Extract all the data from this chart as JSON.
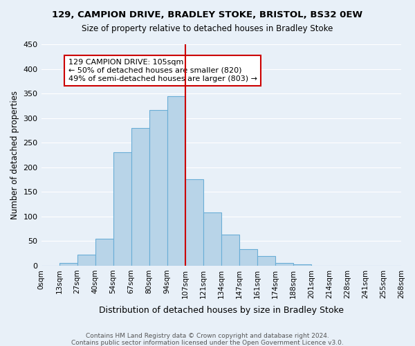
{
  "title1": "129, CAMPION DRIVE, BRADLEY STOKE, BRISTOL, BS32 0EW",
  "title2": "Size of property relative to detached houses in Bradley Stoke",
  "xlabel": "Distribution of detached houses by size in Bradley Stoke",
  "ylabel": "Number of detached properties",
  "bin_labels": [
    "0sqm",
    "13sqm",
    "27sqm",
    "40sqm",
    "54sqm",
    "67sqm",
    "80sqm",
    "94sqm",
    "107sqm",
    "121sqm",
    "134sqm",
    "147sqm",
    "161sqm",
    "174sqm",
    "188sqm",
    "201sqm",
    "214sqm",
    "228sqm",
    "241sqm",
    "255sqm",
    "268sqm"
  ],
  "bar_values": [
    0,
    6,
    22,
    55,
    230,
    280,
    316,
    344,
    176,
    108,
    63,
    33,
    19,
    6,
    2,
    0,
    0,
    0,
    0,
    0
  ],
  "bar_color": "#b8d4e8",
  "bar_edge_color": "#6aaed6",
  "vline_x": 8,
  "vline_color": "#cc0000",
  "ylim": [
    0,
    450
  ],
  "yticks": [
    0,
    50,
    100,
    150,
    200,
    250,
    300,
    350,
    400,
    450
  ],
  "annotation_title": "129 CAMPION DRIVE: 105sqm",
  "annotation_line1": "← 50% of detached houses are smaller (820)",
  "annotation_line2": "49% of semi-detached houses are larger (803) →",
  "annotation_box_color": "#ffffff",
  "annotation_box_edge": "#cc0000",
  "footer1": "Contains HM Land Registry data © Crown copyright and database right 2024.",
  "footer2": "Contains public sector information licensed under the Open Government Licence v3.0.",
  "background_color": "#e8f0f8",
  "plot_background": "#e8f0f8"
}
